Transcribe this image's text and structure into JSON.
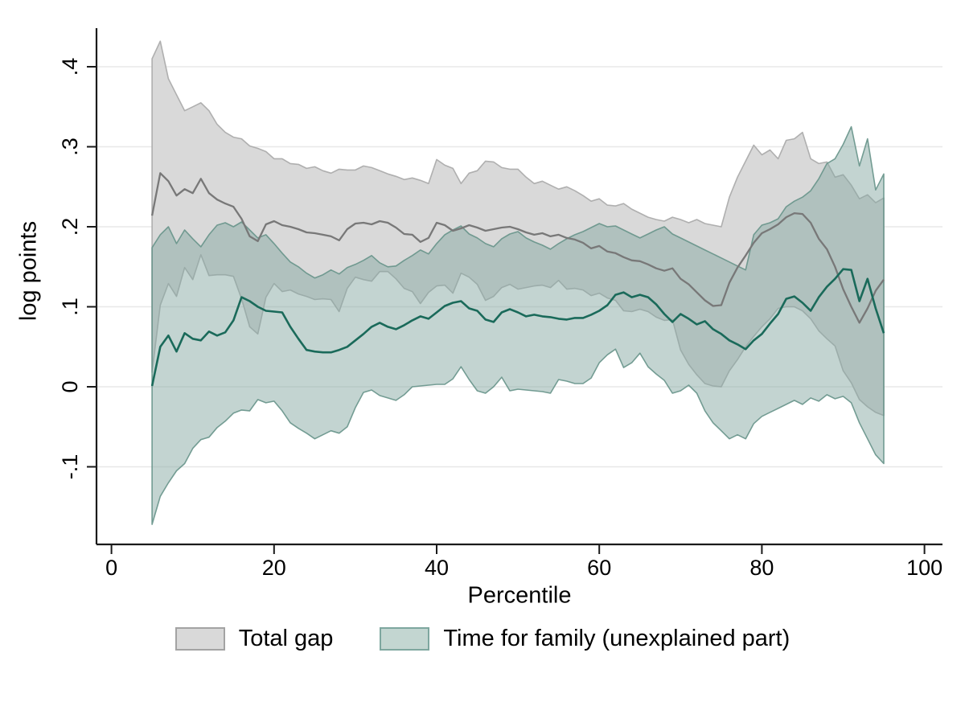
{
  "figure": {
    "background": "#ffffff",
    "y_axis_title": "log points",
    "x_axis_title": "Percentile"
  },
  "legend": {
    "position": "bottom-center",
    "items": [
      {
        "label": "Total gap",
        "fill": "#d9d9d9",
        "border": "#a3a3a3"
      },
      {
        "label": "Time for family (unexplained part)",
        "fill": "#c3d6d1",
        "border": "#7ea79f"
      }
    ]
  },
  "chart_data": {
    "type": "line",
    "subtype": "lines-with-confidence-bands",
    "title": "",
    "xlabel": "Percentile",
    "ylabel": "log points",
    "xlim": [
      0,
      102
    ],
    "ylim": [
      -0.19,
      0.45
    ],
    "grid": "horizontal",
    "x_ticks": [
      {
        "v": 0,
        "label": "0"
      },
      {
        "v": 20,
        "label": "20"
      },
      {
        "v": 40,
        "label": "40"
      },
      {
        "v": 60,
        "label": "60"
      },
      {
        "v": 80,
        "label": "80"
      },
      {
        "v": 100,
        "label": "100"
      }
    ],
    "y_ticks": [
      {
        "v": 0.4,
        "label": ".4"
      },
      {
        "v": 0.3,
        "label": ".3"
      },
      {
        "v": 0.2,
        "label": ".2"
      },
      {
        "v": 0.1,
        "label": ".1"
      },
      {
        "v": 0.0,
        "label": "0"
      },
      {
        "v": -0.1,
        "label": "-.1"
      }
    ],
    "x": [
      5,
      6,
      7,
      8,
      9,
      10,
      11,
      12,
      13,
      14,
      15,
      16,
      17,
      18,
      19,
      20,
      21,
      22,
      23,
      24,
      25,
      26,
      27,
      28,
      29,
      30,
      31,
      32,
      33,
      34,
      35,
      36,
      37,
      38,
      39,
      40,
      41,
      42,
      43,
      44,
      45,
      46,
      47,
      48,
      49,
      50,
      51,
      52,
      53,
      54,
      55,
      56,
      57,
      58,
      59,
      60,
      61,
      62,
      63,
      64,
      65,
      66,
      67,
      68,
      69,
      70,
      71,
      72,
      73,
      74,
      75,
      76,
      77,
      78,
      79,
      80,
      81,
      82,
      83,
      84,
      85,
      86,
      87,
      88,
      89,
      90,
      91,
      92,
      93,
      94,
      95
    ],
    "series": [
      {
        "name": "Total gap",
        "line_color": "#787878",
        "line_width": 2.3,
        "band_fill": "#d9d9d9",
        "band_opacity": 1.0,
        "band_stroke": "#a8a8a8",
        "values": [
          0.214,
          0.267,
          0.257,
          0.239,
          0.247,
          0.242,
          0.26,
          0.242,
          0.234,
          0.229,
          0.225,
          0.21,
          0.188,
          0.182,
          0.203,
          0.207,
          0.202,
          0.2,
          0.197,
          0.193,
          0.192,
          0.19,
          0.188,
          0.183,
          0.197,
          0.204,
          0.205,
          0.203,
          0.207,
          0.205,
          0.199,
          0.191,
          0.19,
          0.181,
          0.186,
          0.205,
          0.202,
          0.195,
          0.198,
          0.202,
          0.199,
          0.195,
          0.197,
          0.199,
          0.2,
          0.197,
          0.193,
          0.19,
          0.192,
          0.188,
          0.19,
          0.186,
          0.184,
          0.18,
          0.173,
          0.176,
          0.169,
          0.167,
          0.162,
          0.158,
          0.157,
          0.153,
          0.148,
          0.145,
          0.148,
          0.135,
          0.128,
          0.118,
          0.108,
          0.101,
          0.102,
          0.13,
          0.149,
          0.164,
          0.18,
          0.192,
          0.197,
          0.203,
          0.212,
          0.217,
          0.216,
          0.205,
          0.185,
          0.172,
          0.15,
          0.122,
          0.1,
          0.08,
          0.098,
          0.12,
          0.134
        ],
        "upper": [
          0.41,
          0.432,
          0.385,
          0.365,
          0.345,
          0.35,
          0.355,
          0.345,
          0.328,
          0.318,
          0.312,
          0.31,
          0.301,
          0.298,
          0.294,
          0.285,
          0.285,
          0.279,
          0.278,
          0.273,
          0.275,
          0.27,
          0.267,
          0.272,
          0.271,
          0.271,
          0.276,
          0.274,
          0.27,
          0.266,
          0.263,
          0.259,
          0.261,
          0.258,
          0.254,
          0.284,
          0.277,
          0.273,
          0.254,
          0.267,
          0.27,
          0.282,
          0.281,
          0.274,
          0.272,
          0.272,
          0.262,
          0.254,
          0.257,
          0.252,
          0.247,
          0.25,
          0.245,
          0.239,
          0.232,
          0.235,
          0.227,
          0.226,
          0.229,
          0.222,
          0.217,
          0.212,
          0.209,
          0.207,
          0.212,
          0.209,
          0.205,
          0.209,
          0.204,
          0.202,
          0.2,
          0.237,
          0.262,
          0.282,
          0.302,
          0.29,
          0.296,
          0.285,
          0.308,
          0.31,
          0.318,
          0.285,
          0.279,
          0.281,
          0.262,
          0.265,
          0.252,
          0.235,
          0.24,
          0.23,
          0.236
        ],
        "lower": [
          0.018,
          0.102,
          0.129,
          0.113,
          0.149,
          0.134,
          0.165,
          0.139,
          0.14,
          0.14,
          0.138,
          0.11,
          0.075,
          0.066,
          0.112,
          0.129,
          0.119,
          0.121,
          0.116,
          0.113,
          0.109,
          0.11,
          0.109,
          0.094,
          0.123,
          0.137,
          0.134,
          0.132,
          0.144,
          0.144,
          0.135,
          0.123,
          0.119,
          0.104,
          0.118,
          0.126,
          0.127,
          0.117,
          0.142,
          0.137,
          0.128,
          0.108,
          0.113,
          0.124,
          0.128,
          0.122,
          0.124,
          0.126,
          0.127,
          0.124,
          0.133,
          0.122,
          0.123,
          0.121,
          0.114,
          0.117,
          0.111,
          0.108,
          0.095,
          0.094,
          0.097,
          0.094,
          0.087,
          0.083,
          0.084,
          0.046,
          0.028,
          0.015,
          0.004,
          0.001,
          0.0,
          0.02,
          0.034,
          0.05,
          0.063,
          0.075,
          0.085,
          0.098,
          0.1,
          0.1,
          0.095,
          0.085,
          0.07,
          0.06,
          0.051,
          0.02,
          0.005,
          -0.016,
          -0.025,
          -0.032,
          -0.036
        ]
      },
      {
        "name": "Time for family (unexplained part)",
        "line_color": "#1a6a5a",
        "line_width": 2.6,
        "band_fill": "#87aaa3",
        "band_opacity": 0.5,
        "band_stroke": "#679389",
        "values": [
          0.001,
          0.05,
          0.064,
          0.044,
          0.067,
          0.06,
          0.058,
          0.069,
          0.064,
          0.068,
          0.083,
          0.112,
          0.107,
          0.1,
          0.095,
          0.094,
          0.093,
          0.075,
          0.06,
          0.046,
          0.044,
          0.043,
          0.043,
          0.046,
          0.05,
          0.058,
          0.066,
          0.075,
          0.08,
          0.075,
          0.072,
          0.077,
          0.083,
          0.088,
          0.085,
          0.093,
          0.101,
          0.105,
          0.107,
          0.098,
          0.095,
          0.084,
          0.081,
          0.093,
          0.097,
          0.093,
          0.088,
          0.09,
          0.088,
          0.087,
          0.085,
          0.084,
          0.086,
          0.086,
          0.09,
          0.095,
          0.102,
          0.115,
          0.118,
          0.112,
          0.115,
          0.112,
          0.103,
          0.091,
          0.081,
          0.091,
          0.085,
          0.078,
          0.082,
          0.072,
          0.066,
          0.058,
          0.053,
          0.047,
          0.058,
          0.066,
          0.079,
          0.091,
          0.11,
          0.113,
          0.105,
          0.095,
          0.112,
          0.125,
          0.135,
          0.147,
          0.146,
          0.107,
          0.135,
          0.098,
          0.067
        ],
        "upper": [
          0.174,
          0.19,
          0.2,
          0.179,
          0.196,
          0.185,
          0.175,
          0.19,
          0.202,
          0.205,
          0.2,
          0.206,
          0.196,
          0.186,
          0.19,
          0.179,
          0.167,
          0.156,
          0.15,
          0.142,
          0.136,
          0.14,
          0.146,
          0.141,
          0.149,
          0.153,
          0.158,
          0.164,
          0.155,
          0.15,
          0.151,
          0.158,
          0.164,
          0.171,
          0.166,
          0.179,
          0.19,
          0.196,
          0.201,
          0.191,
          0.186,
          0.179,
          0.175,
          0.185,
          0.191,
          0.194,
          0.186,
          0.181,
          0.177,
          0.172,
          0.179,
          0.185,
          0.19,
          0.194,
          0.199,
          0.204,
          0.2,
          0.201,
          0.196,
          0.191,
          0.186,
          0.191,
          0.196,
          0.2,
          0.191,
          0.186,
          0.181,
          0.176,
          0.171,
          0.166,
          0.161,
          0.156,
          0.151,
          0.146,
          0.19,
          0.202,
          0.205,
          0.21,
          0.225,
          0.232,
          0.237,
          0.245,
          0.26,
          0.279,
          0.285,
          0.303,
          0.325,
          0.276,
          0.31,
          0.246,
          0.266
        ],
        "lower": [
          -0.172,
          -0.137,
          -0.12,
          -0.105,
          -0.096,
          -0.077,
          -0.066,
          -0.063,
          -0.051,
          -0.043,
          -0.033,
          -0.029,
          -0.03,
          -0.016,
          -0.02,
          -0.018,
          -0.03,
          -0.045,
          -0.052,
          -0.058,
          -0.065,
          -0.06,
          -0.055,
          -0.058,
          -0.05,
          -0.026,
          -0.007,
          -0.004,
          -0.011,
          -0.014,
          -0.017,
          -0.01,
          0.0,
          0.001,
          0.002,
          0.003,
          0.003,
          0.01,
          0.025,
          0.009,
          -0.005,
          -0.008,
          0.0,
          0.012,
          -0.005,
          -0.003,
          -0.004,
          -0.005,
          -0.006,
          -0.008,
          0.009,
          0.007,
          0.004,
          0.004,
          0.011,
          0.03,
          0.04,
          0.047,
          0.024,
          0.03,
          0.042,
          0.025,
          0.016,
          0.008,
          -0.008,
          -0.005,
          0.002,
          -0.008,
          -0.03,
          -0.045,
          -0.055,
          -0.065,
          -0.06,
          -0.065,
          -0.046,
          -0.037,
          -0.032,
          -0.027,
          -0.022,
          -0.017,
          -0.022,
          -0.014,
          -0.018,
          -0.01,
          -0.015,
          -0.012,
          -0.02,
          -0.045,
          -0.065,
          -0.085,
          -0.096
        ]
      }
    ]
  }
}
